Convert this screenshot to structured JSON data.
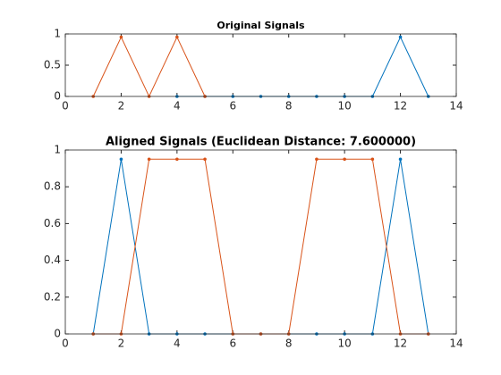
{
  "chart_data": [
    {
      "type": "line",
      "title": "Original Signals",
      "xlim": [
        0,
        14
      ],
      "xticks": [
        0,
        2,
        4,
        6,
        8,
        10,
        12,
        14
      ],
      "ylim": [
        0,
        1
      ],
      "yticks": [
        0,
        0.5,
        1
      ],
      "series": [
        {
          "color": "#0072BD",
          "x": [
            4,
            5,
            6,
            7,
            8,
            9,
            10,
            11,
            12,
            13
          ],
          "values": [
            0,
            0,
            0,
            0,
            0,
            0,
            0,
            0,
            0.95,
            0
          ]
        },
        {
          "color": "#D95319",
          "x": [
            1,
            2,
            3,
            4,
            5
          ],
          "values": [
            0,
            0.95,
            0,
            0.95,
            0
          ]
        }
      ]
    },
    {
      "type": "line",
      "title": "Aligned Signals (Euclidean Distance: 7.600000)",
      "xlim": [
        0,
        14
      ],
      "xticks": [
        0,
        2,
        4,
        6,
        8,
        10,
        12,
        14
      ],
      "ylim": [
        0,
        1
      ],
      "yticks": [
        0,
        0.2,
        0.4,
        0.6,
        0.8,
        1
      ],
      "series": [
        {
          "color": "#0072BD",
          "x": [
            1,
            2,
            3,
            4,
            5,
            6,
            7,
            8,
            9,
            10,
            11,
            12,
            13
          ],
          "values": [
            0,
            0.95,
            0,
            0,
            0,
            0,
            0,
            0,
            0,
            0,
            0,
            0.95,
            0
          ]
        },
        {
          "color": "#D95319",
          "x": [
            1,
            2,
            3,
            4,
            5,
            6,
            7,
            8,
            9,
            10,
            11,
            12,
            13
          ],
          "values": [
            0,
            0,
            0.95,
            0.95,
            0.95,
            0,
            0,
            0,
            0.95,
            0.95,
            0.95,
            0,
            0
          ]
        }
      ]
    }
  ]
}
